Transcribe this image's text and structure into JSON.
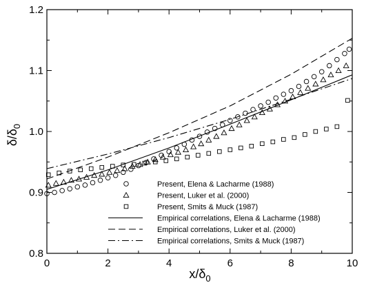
{
  "chart_data": {
    "type": "scatter",
    "xlabel": {
      "main": "x/δ",
      "sub": "0"
    },
    "ylabel": {
      "main": "δ/δ",
      "sub": "0"
    },
    "xlim": [
      0,
      10
    ],
    "ylim": [
      0.8,
      1.2
    ],
    "x_ticks": [
      0,
      2,
      4,
      6,
      8,
      10
    ],
    "x_tick_labels": [
      "0",
      "2",
      "4",
      "6",
      "8",
      "10"
    ],
    "y_ticks": [
      0.8,
      0.9,
      1.0,
      1.1,
      1.2
    ],
    "y_tick_labels": [
      "0.8",
      "0.9",
      "1.0",
      "1.1",
      "1.2"
    ],
    "grid": false,
    "legend_position": "bottom-right",
    "series": [
      {
        "name": "Present, Elena & Lacharme (1988)",
        "kind": "markers",
        "marker": "circle",
        "x": [
          0,
          0.25,
          0.5,
          0.75,
          1.0,
          1.25,
          1.5,
          1.75,
          2.0,
          2.25,
          2.5,
          2.75,
          3.0,
          3.25,
          3.5,
          3.75,
          4.0,
          4.25,
          4.5,
          4.75,
          5.0,
          5.25,
          5.5,
          5.75,
          6.0,
          6.25,
          6.5,
          6.75,
          7.0,
          7.25,
          7.5,
          7.75,
          8.0,
          8.25,
          8.5,
          8.75,
          9.0,
          9.25,
          9.5,
          9.75,
          9.9
        ],
        "y": [
          0.898,
          0.9,
          0.903,
          0.906,
          0.909,
          0.912,
          0.916,
          0.92,
          0.924,
          0.928,
          0.933,
          0.938,
          0.944,
          0.949,
          0.955,
          0.961,
          0.967,
          0.973,
          0.979,
          0.986,
          0.992,
          0.999,
          1.005,
          1.011,
          1.018,
          1.024,
          1.03,
          1.036,
          1.042,
          1.048,
          1.055,
          1.061,
          1.067,
          1.074,
          1.082,
          1.09,
          1.098,
          1.108,
          1.118,
          1.128,
          1.135
        ]
      },
      {
        "name": "Present, Luker et al. (2000)",
        "kind": "markers",
        "marker": "triangle",
        "x": [
          0.05,
          0.3,
          0.55,
          0.8,
          1.05,
          1.3,
          1.55,
          1.8,
          2.05,
          2.3,
          2.55,
          2.8,
          3.05,
          3.3,
          3.55,
          3.8,
          4.05,
          4.3,
          4.55,
          4.8,
          5.05,
          5.3,
          5.55,
          5.8,
          6.05,
          6.3,
          6.55,
          6.8,
          7.05,
          7.3,
          7.55,
          7.8,
          8.05,
          8.3,
          8.55,
          8.8,
          9.05,
          9.3,
          9.55,
          9.8
        ],
        "y": [
          0.912,
          0.915,
          0.917,
          0.92,
          0.922,
          0.925,
          0.928,
          0.93,
          0.933,
          0.936,
          0.939,
          0.943,
          0.946,
          0.95,
          0.954,
          0.958,
          0.962,
          0.966,
          0.97,
          0.975,
          0.98,
          0.986,
          0.992,
          0.998,
          1.005,
          1.011,
          1.018,
          1.024,
          1.031,
          1.037,
          1.044,
          1.05,
          1.057,
          1.064,
          1.071,
          1.078,
          1.085,
          1.093,
          1.1,
          1.108
        ]
      },
      {
        "name": "Present, Smits & Muck (1987)",
        "kind": "markers",
        "marker": "square",
        "x": [
          0.05,
          0.4,
          0.75,
          1.1,
          1.45,
          1.8,
          2.15,
          2.5,
          2.85,
          3.2,
          3.55,
          3.9,
          4.25,
          4.6,
          4.95,
          5.3,
          5.65,
          6.0,
          6.35,
          6.7,
          7.05,
          7.4,
          7.75,
          8.1,
          8.45,
          8.8,
          9.15,
          9.5,
          9.85
        ],
        "y": [
          0.929,
          0.932,
          0.935,
          0.937,
          0.939,
          0.941,
          0.943,
          0.945,
          0.946,
          0.948,
          0.95,
          0.952,
          0.955,
          0.958,
          0.961,
          0.964,
          0.967,
          0.97,
          0.973,
          0.976,
          0.98,
          0.983,
          0.987,
          0.99,
          0.995,
          1.0,
          1.004,
          1.008,
          1.051
        ]
      },
      {
        "name": "Empirical correlations, Elena & Lacharme (1988)",
        "kind": "line",
        "dash": "solid",
        "x": [
          0,
          2,
          4,
          6,
          8,
          10
        ],
        "y": [
          0.905,
          0.937,
          0.973,
          1.012,
          1.052,
          1.093
        ]
      },
      {
        "name": "Empirical correlations, Luker et al. (2000)",
        "kind": "line",
        "dash": "dashed",
        "x": [
          0,
          2,
          4,
          6,
          8,
          10
        ],
        "y": [
          0.922,
          0.958,
          0.998,
          1.042,
          1.094,
          1.153
        ]
      },
      {
        "name": "Empirical correlations, Smits & Muck (1987)",
        "kind": "line",
        "dash": "dashdot",
        "x": [
          0,
          2,
          4,
          6,
          8,
          10
        ],
        "y": [
          0.939,
          0.963,
          0.99,
          1.02,
          1.053,
          1.087
        ]
      }
    ]
  }
}
